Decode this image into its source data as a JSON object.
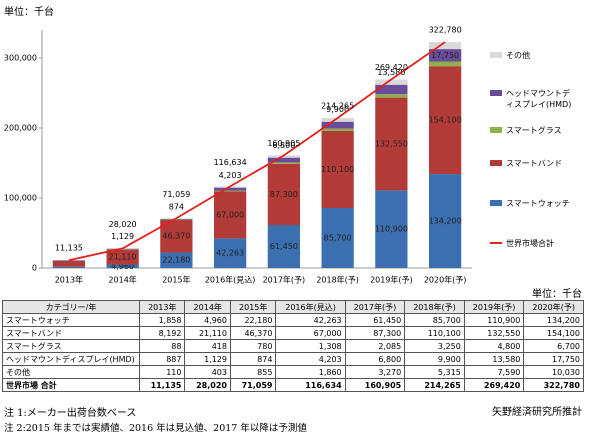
{
  "chart_data": {
    "type": "bar",
    "stacked": true,
    "unit": "単位：千台",
    "categories": [
      "2013年",
      "2014年",
      "2015年",
      "2016年(見込)",
      "2017年(予)",
      "2018年(予)",
      "2019年(予)",
      "2020年(予)"
    ],
    "series": [
      {
        "name": "スマートウォッチ",
        "color": "#3b6fb0",
        "values": [
          1858,
          4960,
          22180,
          42263,
          61450,
          85700,
          110900,
          134200
        ],
        "value_labels": [
          null,
          "4,960",
          "22,180",
          "42,263",
          "61,450",
          "85,700",
          "110,900",
          "134,200"
        ]
      },
      {
        "name": "スマートバンド",
        "color": "#b23b38",
        "values": [
          8192,
          21110,
          46370,
          67000,
          87300,
          110100,
          132550,
          154100
        ],
        "value_labels": [
          null,
          "21,110",
          "46,370",
          "67,000",
          "87,300",
          "110,100",
          "132,550",
          "154,100"
        ]
      },
      {
        "name": "スマートグラス",
        "color": "#8db04a",
        "values": [
          88,
          418,
          780,
          1308,
          2085,
          3250,
          4800,
          6700
        ],
        "value_labels": [
          null,
          null,
          null,
          null,
          null,
          null,
          null,
          null
        ]
      },
      {
        "name": "ヘッドマウントディスプレイ(HMD)",
        "color": "#6b4c9a",
        "values": [
          887,
          1129,
          874,
          4203,
          6800,
          9900,
          13580,
          17750
        ],
        "value_labels": [
          null,
          "1,129",
          "874",
          "4,203",
          "6,800",
          "9,900",
          "13,580",
          "17,750"
        ]
      },
      {
        "name": "その他",
        "color": "#d9d9d9",
        "values": [
          110,
          403,
          855,
          1860,
          3270,
          5315,
          7590,
          10030
        ],
        "value_labels": [
          null,
          null,
          null,
          null,
          null,
          null,
          null,
          null
        ]
      }
    ],
    "line_series": {
      "name": "世界市場合計",
      "color": "#e3201b",
      "values": [
        11135,
        28020,
        71059,
        116634,
        160905,
        214265,
        269420,
        322780
      ],
      "value_labels": [
        "11,135",
        "28,020",
        "71,059",
        "116,634",
        "160,905",
        "214,265",
        "269,420",
        "322,780"
      ]
    },
    "ylim": [
      0,
      340000
    ],
    "yticks": [
      {
        "value": 0,
        "label": "0"
      },
      {
        "value": 100000,
        "label": "100,000"
      },
      {
        "value": 200000,
        "label": "200,000"
      },
      {
        "value": 300000,
        "label": "300,000"
      }
    ],
    "grid": false
  },
  "table": {
    "unit": "単位：千台",
    "header": [
      "カテゴリー/年",
      "2013年",
      "2014年",
      "2015年",
      "2016年(見込)",
      "2017年(予)",
      "2018年(予)",
      "2019年(予)",
      "2020年(予)"
    ],
    "rows": [
      [
        "スマートウォッチ",
        "1,858",
        "4,960",
        "22,180",
        "42,263",
        "61,450",
        "85,700",
        "110,900",
        "134,200"
      ],
      [
        "スマートバンド",
        "8,192",
        "21,110",
        "46,370",
        "67,000",
        "87,300",
        "110,100",
        "132,550",
        "154,100"
      ],
      [
        "スマートグラス",
        "88",
        "418",
        "780",
        "1,308",
        "2,085",
        "3,250",
        "4,800",
        "6,700"
      ],
      [
        "ヘッドマウントディスプレイ(HMD)",
        "887",
        "1,129",
        "874",
        "4,203",
        "6,800",
        "9,900",
        "13,580",
        "17,750"
      ],
      [
        "その他",
        "110",
        "403",
        "855",
        "1,860",
        "3,270",
        "5,315",
        "7,590",
        "10,030"
      ],
      [
        "世界市場 合計",
        "11,135",
        "28,020",
        "71,059",
        "116,634",
        "160,905",
        "214,265",
        "269,420",
        "322,780"
      ]
    ]
  },
  "source": "矢野経済研究所推計",
  "notes": [
    "注 1:メーカー出荷台数ベース",
    "注 2:2015 年までは実績値、2016 年は見込値、2017 年以降は予測値"
  ]
}
